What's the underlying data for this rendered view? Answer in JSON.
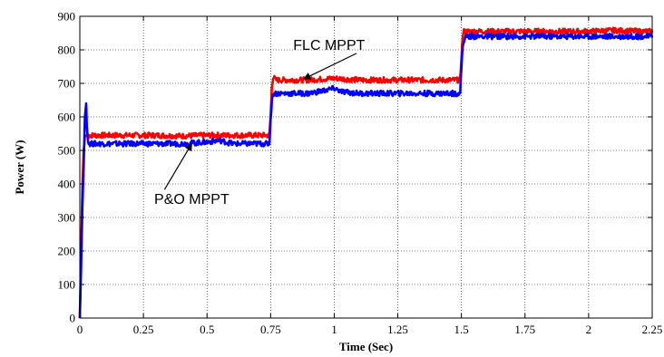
{
  "chart_data": {
    "type": "line",
    "xlabel": "Time (Sec)",
    "ylabel": "Power (W)",
    "xlim": [
      0,
      2.25
    ],
    "ylim": [
      0,
      900
    ],
    "xticks": [
      "0",
      "0.25",
      "0.5",
      "0.75",
      "1",
      "1.25",
      "1.5",
      "1.75",
      "2",
      "2.25"
    ],
    "yticks": [
      "0",
      "100",
      "200",
      "300",
      "400",
      "500",
      "600",
      "700",
      "800",
      "900"
    ],
    "grid": true,
    "series": [
      {
        "name": "FLC MPPT",
        "color": "#ff0000",
        "x": [
          0,
          0.005,
          0.01,
          0.015,
          0.02,
          0.025,
          0.03,
          0.05,
          0.1,
          0.2,
          0.3,
          0.4,
          0.5,
          0.6,
          0.7,
          0.745,
          0.75,
          0.755,
          0.76,
          0.77,
          0.8,
          0.9,
          1.0,
          1.1,
          1.2,
          1.3,
          1.4,
          1.495,
          1.5,
          1.505,
          1.51,
          1.52,
          1.6,
          1.7,
          1.8,
          1.9,
          2.0,
          2.1,
          2.2,
          2.25
        ],
        "y": [
          0,
          200,
          390,
          500,
          540,
          545,
          545,
          545,
          545,
          545,
          545,
          543,
          545,
          545,
          545,
          545,
          600,
          690,
          720,
          710,
          710,
          710,
          715,
          710,
          710,
          710,
          710,
          710,
          780,
          840,
          855,
          855,
          855,
          855,
          855,
          855,
          855,
          858,
          855,
          855
        ]
      },
      {
        "name": "P&O MPPT",
        "color": "#0000ff",
        "x": [
          0,
          0.005,
          0.01,
          0.015,
          0.02,
          0.025,
          0.028,
          0.035,
          0.05,
          0.1,
          0.2,
          0.3,
          0.4,
          0.5,
          0.55,
          0.6,
          0.7,
          0.745,
          0.75,
          0.755,
          0.76,
          0.77,
          0.8,
          0.9,
          0.97,
          1.0,
          1.03,
          1.1,
          1.2,
          1.3,
          1.4,
          1.495,
          1.5,
          1.505,
          1.51,
          1.52,
          1.55,
          1.6,
          1.7,
          1.8,
          1.9,
          2.0,
          2.1,
          2.2,
          2.25
        ],
        "y": [
          0,
          150,
          330,
          450,
          600,
          640,
          560,
          520,
          520,
          520,
          520,
          520,
          520,
          525,
          530,
          520,
          520,
          520,
          590,
          650,
          670,
          670,
          670,
          670,
          680,
          685,
          675,
          670,
          670,
          670,
          670,
          670,
          750,
          810,
          830,
          840,
          840,
          840,
          840,
          840,
          840,
          840,
          840,
          840,
          840
        ]
      }
    ],
    "annotations": [
      {
        "text": "FLC MPPT",
        "x": 0.98,
        "y": 800,
        "arrow_to": [
          0.88,
          713
        ]
      },
      {
        "text": "P&O MPPT",
        "x": 0.44,
        "y": 340,
        "arrow_to": [
          0.44,
          520
        ]
      }
    ]
  }
}
